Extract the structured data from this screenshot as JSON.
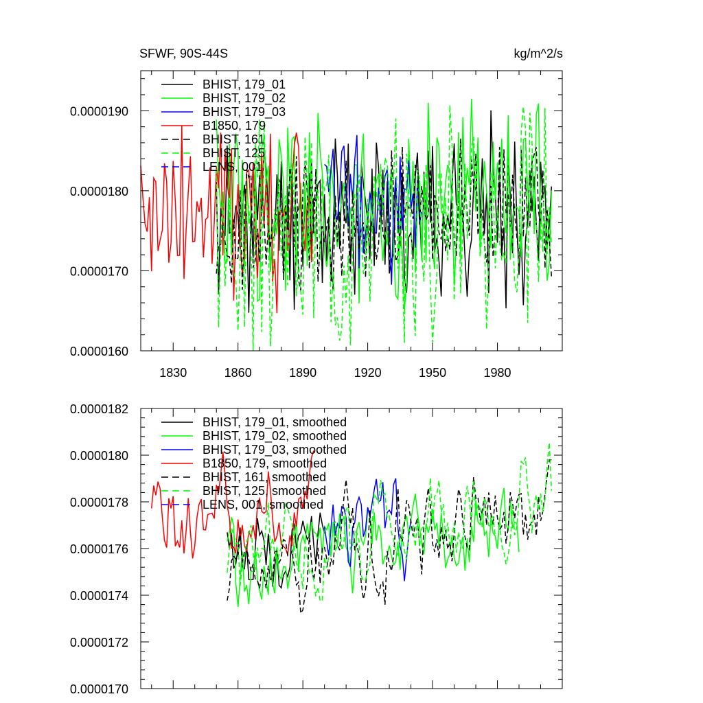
{
  "chart_data": [
    {
      "type": "line",
      "title": "SFWF, 90S-44S",
      "units_label": "kg/m^2/s",
      "xlabel": "",
      "ylabel": "",
      "xlim": [
        1815,
        2010
      ],
      "ylim": [
        1.6e-05,
        1.95e-05
      ],
      "xticks": [
        1830,
        1860,
        1890,
        1920,
        1950,
        1980
      ],
      "xtick_labels": [
        "1830",
        "1860",
        "1890",
        "1920",
        "1950",
        "1980"
      ],
      "yticks": [
        1.6e-05,
        1.7e-05,
        1.8e-05,
        1.9e-05
      ],
      "ytick_labels": [
        "0.0000160",
        "0.0000170",
        "0.0000180",
        "0.0000190"
      ],
      "legend_position": "top-left",
      "series": [
        {
          "name": "BHIST, 179_01",
          "color": "#000000",
          "dash": "solid",
          "x_start": 1850,
          "x_end": 2005,
          "mean": 1.76e-05,
          "amp": 6e-07,
          "trend": 2e-07,
          "seed": 11
        },
        {
          "name": "BHIST, 179_02",
          "color": "#00ff00",
          "dash": "solid",
          "x_start": 1850,
          "x_end": 2005,
          "mean": 1.77e-05,
          "amp": 7e-07,
          "trend": 3e-07,
          "seed": 23
        },
        {
          "name": "BHIST, 179_03",
          "color": "#0000ff",
          "dash": "solid",
          "x_start": 1900,
          "x_end": 1945,
          "mean": 1.78e-05,
          "amp": 5e-07,
          "trend": 0.0,
          "seed": 37
        },
        {
          "name": "B1850, 179",
          "color": "#ff0000",
          "dash": "solid",
          "x_start": 1815,
          "x_end": 1895,
          "mean": 1.77e-05,
          "amp": 7e-07,
          "trend": 0.0,
          "seed": 41
        },
        {
          "name": "BHIST, 161",
          "color": "#000000",
          "dash": "dashed",
          "x_start": 1850,
          "x_end": 2005,
          "mean": 1.75e-05,
          "amp": 5e-07,
          "trend": 3e-07,
          "seed": 53
        },
        {
          "name": "BHIST, 125",
          "color": "#00ff00",
          "dash": "dashed",
          "x_start": 1850,
          "x_end": 2005,
          "mean": 1.74e-05,
          "amp": 8e-07,
          "trend": 4e-07,
          "seed": 67
        },
        {
          "name": "LENS, 001",
          "color": "#0000ff",
          "dash": "dashed",
          "x_start": 1920,
          "x_end": 1920,
          "mean": 1.76e-05,
          "amp": 0.0,
          "trend": 0.0,
          "seed": 71
        }
      ]
    },
    {
      "type": "line",
      "title": "",
      "xlabel": "",
      "ylabel": "",
      "xlim": [
        1815,
        2010
      ],
      "ylim": [
        1.7e-05,
        1.82e-05
      ],
      "xticks": [
        1830,
        1860,
        1890,
        1920,
        1950,
        1980
      ],
      "xtick_labels": [],
      "yticks": [
        1.7e-05,
        1.72e-05,
        1.74e-05,
        1.76e-05,
        1.78e-05,
        1.8e-05,
        1.82e-05
      ],
      "ytick_labels": [
        "0.0000170",
        "0.0000172",
        "0.0000174",
        "0.0000176",
        "0.0000178",
        "0.0000180",
        "0.0000182"
      ],
      "legend_position": "top-left",
      "series": [
        {
          "name": "BHIST, 179_01, smoothed",
          "color": "#000000",
          "dash": "solid",
          "x_start": 1855,
          "x_end": 1900,
          "mean": 1.76e-05,
          "amp": 2e-07,
          "trend": 0.0,
          "seed": 13
        },
        {
          "name": "BHIST, 179_02, smoothed",
          "color": "#00ff00",
          "dash": "solid",
          "x_start": 1855,
          "x_end": 1990,
          "mean": 1.75e-05,
          "amp": 2e-07,
          "trend": 2e-07,
          "seed": 29
        },
        {
          "name": "BHIST, 179_03, smoothed",
          "color": "#0000ff",
          "dash": "solid",
          "x_start": 1900,
          "x_end": 1940,
          "mean": 1.77e-05,
          "amp": 2e-07,
          "trend": 0.0,
          "seed": 31
        },
        {
          "name": "B1850, 179, smoothed",
          "color": "#ff0000",
          "dash": "solid",
          "x_start": 1820,
          "x_end": 1895,
          "mean": 1.77e-05,
          "amp": 2e-07,
          "trend": 1e-07,
          "seed": 43
        },
        {
          "name": "BHIST, 161, smoothed",
          "color": "#000000",
          "dash": "dashed",
          "x_start": 1855,
          "x_end": 2005,
          "mean": 1.75e-05,
          "amp": 2e-07,
          "trend": 3e-07,
          "seed": 59
        },
        {
          "name": "BHIST, 125, smoothed",
          "color": "#00ff00",
          "dash": "dashed",
          "x_start": 1855,
          "x_end": 2005,
          "mean": 1.75e-05,
          "amp": 2e-07,
          "trend": 3e-07,
          "seed": 61
        },
        {
          "name": "LENS, 001, smoothed",
          "color": "#0000ff",
          "dash": "dashed",
          "x_start": 1920,
          "x_end": 1920,
          "mean": 1.76e-05,
          "amp": 0.0,
          "trend": 0.0,
          "seed": 79
        }
      ]
    }
  ]
}
